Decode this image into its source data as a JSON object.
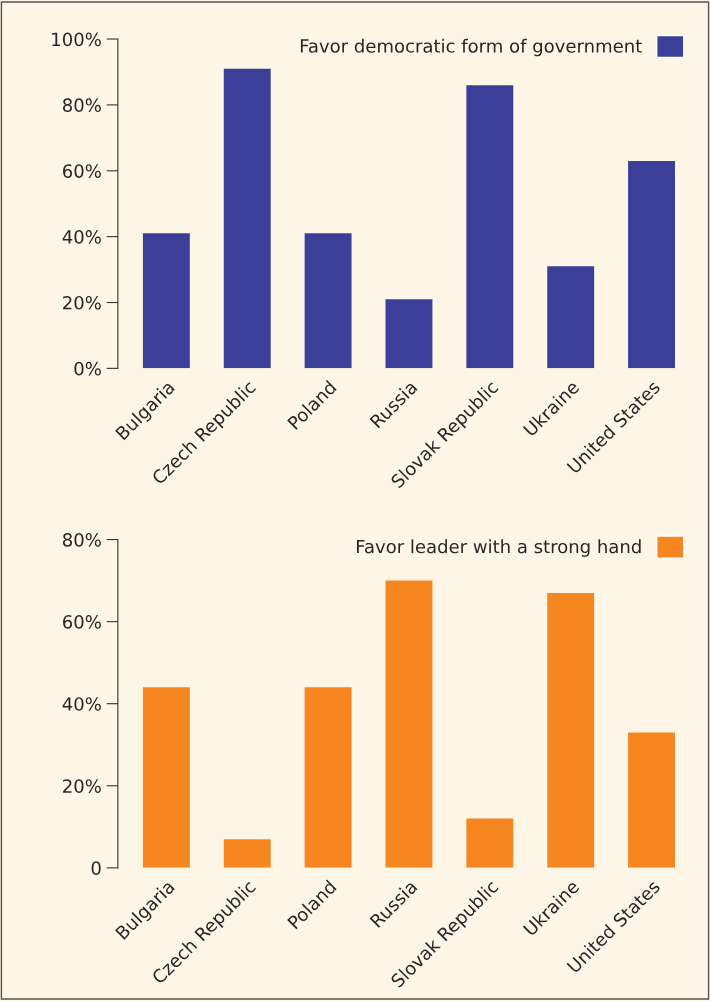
{
  "chart_data": [
    {
      "type": "bar",
      "categories": [
        "Bulgaria",
        "Czech Republic",
        "Poland",
        "Russia",
        "Slovak Republic",
        "Ukraine",
        "United States"
      ],
      "series": [
        {
          "name": "Favor democratic form of government",
          "color": "#3b3f98",
          "values": [
            41,
            91,
            41,
            21,
            86,
            31,
            63
          ]
        }
      ],
      "ylim": [
        0,
        100
      ],
      "yticks": [
        {
          "value": 0,
          "label": "0%"
        },
        {
          "value": 20,
          "label": "20%"
        },
        {
          "value": 40,
          "label": "40%"
        },
        {
          "value": 60,
          "label": "60%"
        },
        {
          "value": 80,
          "label": "80%"
        },
        {
          "value": 100,
          "label": "100%"
        }
      ],
      "grid": false,
      "legend": "top right"
    },
    {
      "type": "bar",
      "categories": [
        "Bulgaria",
        "Czech Republic",
        "Poland",
        "Russia",
        "Slovak Republic",
        "Ukraine",
        "United States"
      ],
      "series": [
        {
          "name": "Favor leader with a strong hand",
          "color": "#f58620",
          "values": [
            44,
            7,
            44,
            70,
            12,
            67,
            33
          ]
        }
      ],
      "ylim": [
        0,
        80
      ],
      "yticks": [
        0,
        {
          "value": 20,
          "label": "20%"
        },
        {
          "value": 40,
          "label": "40%"
        },
        {
          "value": 60,
          "label": "60%"
        },
        {
          "value": 80,
          "label": "80%"
        }
      ],
      "grid": false,
      "legend": "top right"
    }
  ]
}
